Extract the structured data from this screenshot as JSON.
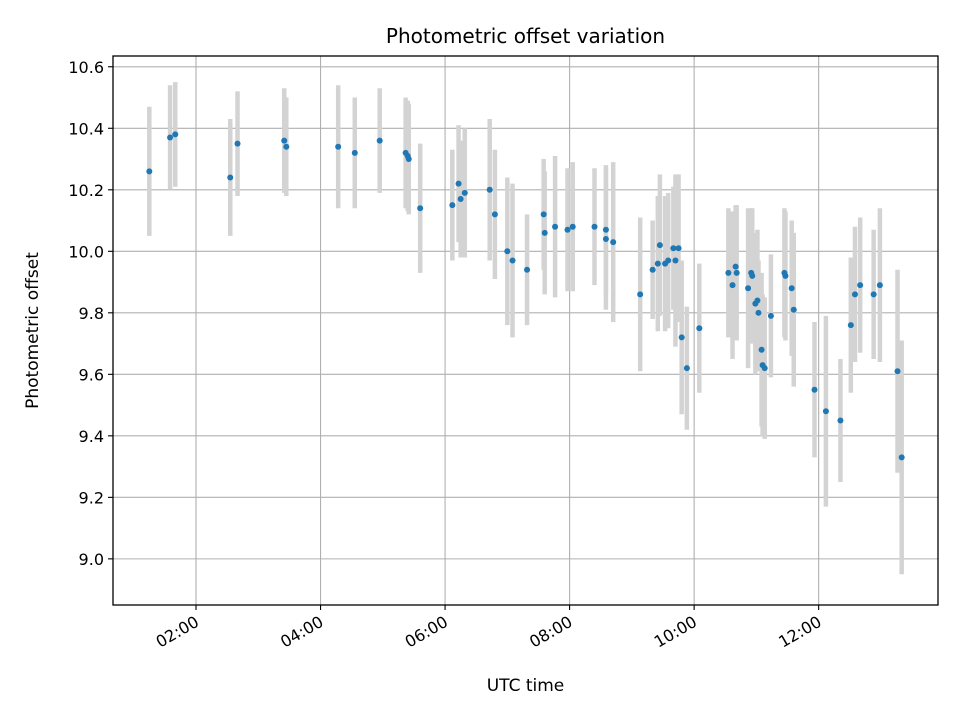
{
  "chart_data": {
    "type": "scatter",
    "title": "Photometric offset variation",
    "xlabel": "UTC time",
    "ylabel": "Photometric offset",
    "x_tick_labels": [
      "02:00",
      "04:00",
      "06:00",
      "08:00",
      "10:00",
      "12:00"
    ],
    "y_tick_labels": [
      "9.0",
      "9.2",
      "9.4",
      "9.6",
      "9.8",
      "10.0",
      "10.2",
      "10.4",
      "10.6"
    ],
    "xlim": [
      "00:40",
      "13:55"
    ],
    "ylim": [
      8.85,
      10.635
    ],
    "grid": true,
    "colors": {
      "points": "#1f77b4",
      "error_bars": "#d3d3d3",
      "grid": "#b0b0b0"
    },
    "series": [
      {
        "x": [
          "01:15",
          "01:35",
          "01:40",
          "02:33",
          "02:40",
          "03:25",
          "03:27",
          "04:17",
          "04:33",
          "04:57",
          "05:22",
          "05:24",
          "05:25",
          "05:36",
          "06:07",
          "06:13",
          "06:15",
          "06:19",
          "06:43",
          "06:48",
          "07:00",
          "07:05",
          "07:19",
          "07:35",
          "07:36",
          "07:46",
          "07:58",
          "08:03",
          "08:24",
          "08:35",
          "08:35",
          "08:42",
          "09:08",
          "09:20",
          "09:25",
          "09:27",
          "09:32",
          "09:35",
          "09:40",
          "09:42",
          "09:45",
          "09:48",
          "09:53",
          "10:05",
          "10:33",
          "10:37",
          "10:40",
          "10:41",
          "10:52",
          "10:55",
          "10:56",
          "10:59",
          "11:01",
          "11:02",
          "11:05",
          "11:06",
          "11:08",
          "11:14",
          "11:27",
          "11:28",
          "11:34",
          "11:36",
          "11:56",
          "12:07",
          "12:21",
          "12:31",
          "12:35",
          "12:40",
          "12:53",
          "12:59",
          "13:16",
          "13:20"
        ],
        "y": [
          10.26,
          10.37,
          10.38,
          10.24,
          10.35,
          10.36,
          10.34,
          10.34,
          10.32,
          10.36,
          10.32,
          10.31,
          10.3,
          10.14,
          10.15,
          10.22,
          10.17,
          10.19,
          10.2,
          10.12,
          10.0,
          9.97,
          9.94,
          10.12,
          10.06,
          10.08,
          10.07,
          10.08,
          10.08,
          10.07,
          10.04,
          10.03,
          9.86,
          9.94,
          9.96,
          10.02,
          9.96,
          9.97,
          10.01,
          9.97,
          10.01,
          9.72,
          9.62,
          9.75,
          9.93,
          9.89,
          9.95,
          9.93,
          9.88,
          9.93,
          9.92,
          9.83,
          9.84,
          9.8,
          9.68,
          9.63,
          9.62,
          9.79,
          9.93,
          9.92,
          9.88,
          9.81,
          9.55,
          9.48,
          9.45,
          9.76,
          9.86,
          9.89,
          9.86,
          9.89,
          9.61,
          9.33
        ],
        "yerr": [
          0.21,
          0.17,
          0.17,
          0.19,
          0.17,
          0.17,
          0.16,
          0.2,
          0.18,
          0.17,
          0.18,
          0.18,
          0.18,
          0.21,
          0.18,
          0.19,
          0.19,
          0.21,
          0.23,
          0.21,
          0.24,
          0.25,
          0.18,
          0.18,
          0.2,
          0.23,
          0.2,
          0.21,
          0.19,
          0.21,
          0.23,
          0.26,
          0.25,
          0.16,
          0.22,
          0.23,
          0.22,
          0.22,
          0.2,
          0.28,
          0.24,
          0.25,
          0.2,
          0.21,
          0.21,
          0.24,
          0.2,
          0.22,
          0.26,
          0.21,
          0.22,
          0.23,
          0.23,
          0.17,
          0.25,
          0.23,
          0.23,
          0.2,
          0.21,
          0.21,
          0.22,
          0.25,
          0.22,
          0.31,
          0.2,
          0.22,
          0.22,
          0.22,
          0.21,
          0.25,
          0.33,
          0.38
        ]
      }
    ]
  }
}
